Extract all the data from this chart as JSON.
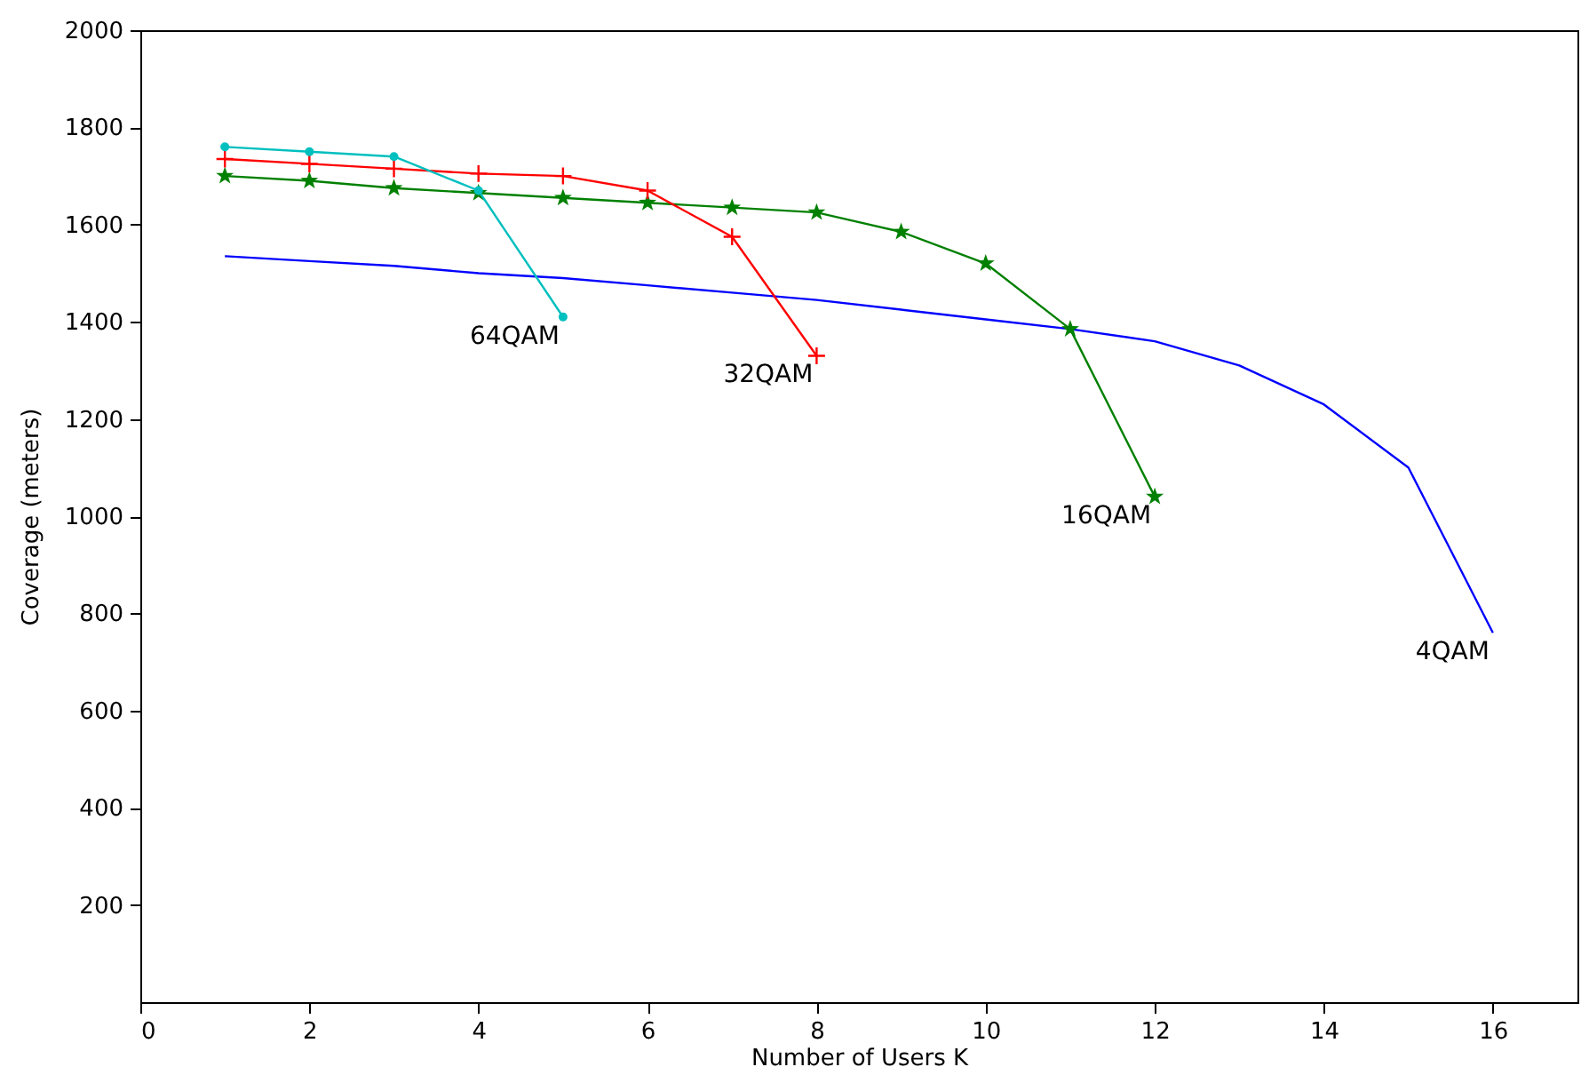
{
  "chart_data": {
    "type": "line",
    "xlabel": "Number of Users K",
    "ylabel": "Coverage (meters)",
    "xlim": [
      0,
      17
    ],
    "xticks": [
      0,
      2,
      4,
      6,
      8,
      10,
      12,
      14,
      16
    ],
    "ylim": [
      0,
      2000
    ],
    "yticks": [
      200,
      400,
      600,
      800,
      1000,
      1200,
      1400,
      1600,
      1800,
      2000
    ],
    "grid": false,
    "series": [
      {
        "name": "4QAM",
        "color": "#0000ff",
        "marker": "none",
        "x": [
          1,
          2,
          3,
          4,
          5,
          6,
          7,
          8,
          9,
          10,
          11,
          12,
          13,
          14,
          15,
          16
        ],
        "values": [
          1535,
          1525,
          1515,
          1500,
          1490,
          1475,
          1460,
          1445,
          1425,
          1405,
          1385,
          1360,
          1310,
          1230,
          1100,
          760
        ]
      },
      {
        "name": "16QAM",
        "color": "#008000",
        "marker": "star",
        "x": [
          1,
          2,
          3,
          4,
          5,
          6,
          7,
          8,
          9,
          10,
          11,
          12
        ],
        "values": [
          1700,
          1690,
          1675,
          1665,
          1655,
          1645,
          1635,
          1625,
          1585,
          1520,
          1385,
          1040
        ]
      },
      {
        "name": "32QAM",
        "color": "#ff0000",
        "marker": "cross",
        "x": [
          1,
          2,
          3,
          4,
          5,
          6,
          7,
          8
        ],
        "values": [
          1735,
          1725,
          1715,
          1705,
          1700,
          1670,
          1575,
          1330
        ]
      },
      {
        "name": "64QAM",
        "color": "#00bfbf",
        "marker": "circle",
        "x": [
          1,
          2,
          3,
          4,
          5
        ],
        "values": [
          1760,
          1750,
          1740,
          1670,
          1410
        ]
      }
    ]
  }
}
